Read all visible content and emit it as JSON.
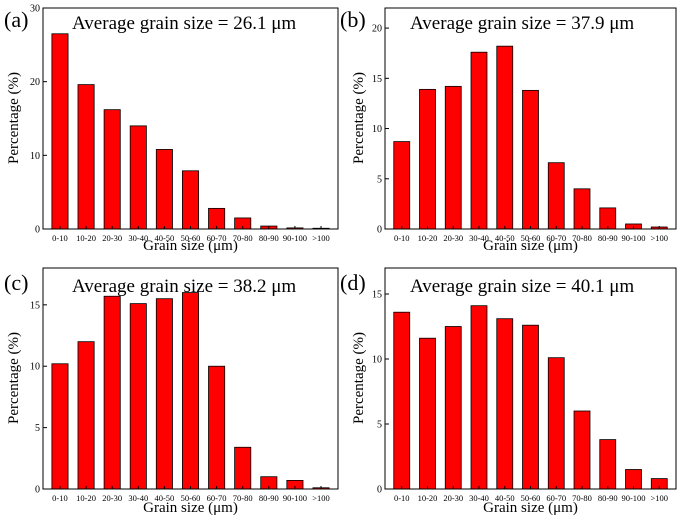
{
  "bar_color": "#ff0000",
  "bar_edge_color": "#000000",
  "chart_data": [
    {
      "type": "bar",
      "panel_label": "(a)",
      "title": "Average grain size = 26.1 μm",
      "xlabel": "Grain size (μm)",
      "ylabel": "Percentage (%)",
      "categories": [
        "0-10",
        "10-20",
        "20-30",
        "30-40",
        "40-50",
        "50-60",
        "60-70",
        "70-80",
        "80-90",
        "90-100",
        ">100"
      ],
      "values": [
        26.5,
        19.6,
        16.2,
        14.0,
        10.8,
        7.9,
        2.8,
        1.5,
        0.4,
        0.15,
        0.1
      ],
      "ylim": [
        0,
        30
      ],
      "yticks": [
        0,
        10,
        20,
        30
      ]
    },
    {
      "type": "bar",
      "panel_label": "(b)",
      "title": "Average grain size = 37.9 μm",
      "xlabel": "Grain size (μm)",
      "ylabel": "Percentage (%)",
      "categories": [
        "0-10",
        "10-20",
        "20-30",
        "30-40",
        "40-50",
        "50-60",
        "60-70",
        "70-80",
        "80-90",
        "90-100",
        ">100"
      ],
      "values": [
        8.7,
        13.9,
        14.2,
        17.6,
        18.2,
        13.8,
        6.6,
        4.0,
        2.1,
        0.5,
        0.2
      ],
      "ylim": [
        0,
        22
      ],
      "yticks": [
        0,
        5,
        10,
        15,
        20
      ]
    },
    {
      "type": "bar",
      "panel_label": "(c)",
      "title": "Average grain size = 38.2 μm",
      "xlabel": "Grain size (μm)",
      "ylabel": "Percentage (%)",
      "categories": [
        "0-10",
        "10-20",
        "20-30",
        "30-40",
        "40-50",
        "50-60",
        "60-70",
        "70-80",
        "80-90",
        "90-100",
        ">100"
      ],
      "values": [
        10.2,
        12.0,
        15.7,
        15.1,
        15.5,
        16.0,
        10.0,
        3.4,
        1.0,
        0.7,
        0.1
      ],
      "ylim": [
        0,
        18
      ],
      "yticks": [
        0,
        5,
        10,
        15
      ]
    },
    {
      "type": "bar",
      "panel_label": "(d)",
      "title": "Average grain size = 40.1 μm",
      "xlabel": "Grain size (μm)",
      "ylabel": "Percentage (%)",
      "categories": [
        "0-10",
        "10-20",
        "20-30",
        "30-40",
        "40-50",
        "50-60",
        "60-70",
        "70-80",
        "80-90",
        "90-100",
        ">100"
      ],
      "values": [
        13.6,
        11.6,
        12.5,
        14.1,
        13.1,
        12.6,
        10.1,
        6.0,
        3.8,
        1.5,
        0.8
      ],
      "ylim": [
        0,
        17
      ],
      "yticks": [
        0,
        5,
        10,
        15
      ]
    }
  ]
}
